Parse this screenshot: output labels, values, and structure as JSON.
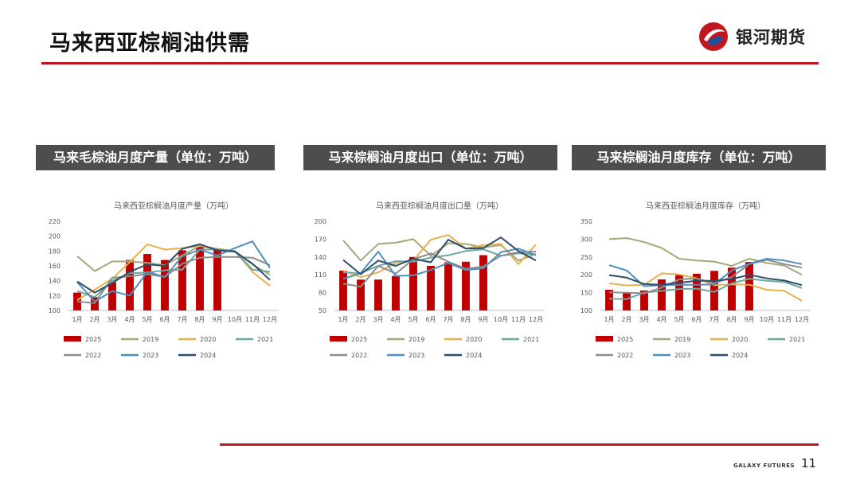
{
  "page": {
    "title": "马来西亚棕榈油供需",
    "page_number": "11",
    "footer_brand": "GALAXY FUTURES"
  },
  "logo": {
    "text": "银河期货",
    "icon": "galaxy-logo-icon",
    "colors": [
      "#c0161d",
      "#1f4e9c"
    ]
  },
  "colors": {
    "accent": "#c0161d",
    "header_bg": "#4d4d4d"
  },
  "panels": [
    {
      "header": "马来毛棕油月度产量（单位：万吨）"
    },
    {
      "header": "马来棕榈油月度出口（单位：万吨）"
    },
    {
      "header": "马来棕榈油月度库存（单位：万吨）"
    }
  ],
  "chart_data": [
    {
      "type": "bar+line",
      "title": "马来西亚棕榈油月度产量（万吨）",
      "categories": [
        "1月",
        "2月",
        "3月",
        "4月",
        "5月",
        "6月",
        "7月",
        "8月",
        "9月",
        "10月",
        "11月",
        "12月"
      ],
      "ylim": [
        100,
        220
      ],
      "yticks": [
        100,
        120,
        140,
        160,
        180,
        200,
        220
      ],
      "legend_position": "bottom",
      "series": [
        {
          "name": "2025",
          "kind": "bar",
          "color": "#c00000",
          "values": [
            124,
            118,
            138,
            168,
            176,
            168,
            181,
            187,
            183,
            null,
            null,
            null
          ]
        },
        {
          "name": "2019",
          "kind": "line",
          "color": "#a6a87a",
          "values": [
            173,
            153,
            166,
            166,
            164,
            161,
            174,
            187,
            183,
            180,
            162,
            148
          ]
        },
        {
          "name": "2020",
          "kind": "line",
          "color": "#e8b04f",
          "values": [
            114,
            128,
            143,
            165,
            189,
            182,
            184,
            187,
            182,
            180,
            152,
            133
          ]
        },
        {
          "name": "2021",
          "kind": "line",
          "color": "#6ea7a1",
          "values": [
            126,
            118,
            140,
            150,
            151,
            154,
            155,
            182,
            182,
            180,
            155,
            152
          ]
        },
        {
          "name": "2022",
          "kind": "line",
          "color": "#8c8c8c",
          "values": [
            112,
            110,
            144,
            146,
            149,
            145,
            163,
            171,
            172,
            172,
            171,
            161
          ]
        },
        {
          "name": "2023",
          "kind": "line",
          "color": "#4f8fc0",
          "values": [
            138,
            112,
            126,
            120,
            152,
            145,
            173,
            182,
            174,
            184,
            193,
            157
          ]
        },
        {
          "name": "2024",
          "kind": "line",
          "color": "#2e4d6a",
          "values": [
            139,
            124,
            137,
            152,
            162,
            160,
            183,
            189,
            181,
            179,
            163,
            141
          ]
        }
      ]
    },
    {
      "type": "bar+line",
      "title": "马来西亚棕榈油月度出口量（万吨）",
      "categories": [
        "1月",
        "2月",
        "3月",
        "4月",
        "5月",
        "6月",
        "7月",
        "8月",
        "9月",
        "10月",
        "11月",
        "12月"
      ],
      "ylim": [
        50,
        200
      ],
      "yticks": [
        50,
        80,
        110,
        140,
        170,
        200
      ],
      "legend_position": "bottom",
      "series": [
        {
          "name": "2025",
          "kind": "bar",
          "color": "#c00000",
          "values": [
            117,
            102,
            102,
            108,
            140,
            125,
            131,
            132,
            143,
            null,
            null,
            null
          ]
        },
        {
          "name": "2019",
          "kind": "line",
          "color": "#a6a87a",
          "values": [
            168,
            134,
            162,
            164,
            170,
            142,
            163,
            162,
            156,
            160,
            134,
            145
          ]
        },
        {
          "name": "2020",
          "kind": "line",
          "color": "#e8b04f",
          "values": [
            117,
            106,
            114,
            130,
            134,
            169,
            177,
            154,
            160,
            162,
            128,
            161
          ]
        },
        {
          "name": "2021",
          "kind": "line",
          "color": "#6ea7a1",
          "values": [
            114,
            113,
            125,
            133,
            132,
            139,
            143,
            150,
            153,
            142,
            146,
            144
          ]
        },
        {
          "name": "2022",
          "kind": "line",
          "color": "#8c8c8c",
          "values": [
            95,
            90,
            125,
            112,
            136,
            146,
            132,
            120,
            124,
            142,
            148,
            149
          ]
        },
        {
          "name": "2023",
          "kind": "line",
          "color": "#4f8fc0",
          "values": [
            103,
            113,
            149,
            108,
            109,
            118,
            130,
            118,
            121,
            148,
            154,
            143
          ]
        },
        {
          "name": "2024",
          "kind": "line",
          "color": "#2e4d6a",
          "values": [
            135,
            111,
            134,
            125,
            137,
            131,
            169,
            154,
            155,
            173,
            150,
            134
          ]
        }
      ]
    },
    {
      "type": "bar+line",
      "title": "马来西亚棕榈油月度库存（万吨）",
      "categories": [
        "1月",
        "2月",
        "3月",
        "4月",
        "5月",
        "6月",
        "7月",
        "8月",
        "9月",
        "10月",
        "11月",
        "12月"
      ],
      "ylim": [
        100,
        350
      ],
      "yticks": [
        100,
        150,
        200,
        250,
        300,
        350
      ],
      "legend_position": "bottom",
      "series": [
        {
          "name": "2025",
          "kind": "bar",
          "color": "#c00000",
          "values": [
            158,
            150,
            156,
            187,
            199,
            203,
            211,
            220,
            236,
            null,
            null,
            null
          ]
        },
        {
          "name": "2019",
          "kind": "line",
          "color": "#a6a87a",
          "values": [
            300,
            303,
            292,
            275,
            245,
            240,
            237,
            225,
            245,
            233,
            226,
            200
          ]
        },
        {
          "name": "2020",
          "kind": "line",
          "color": "#e8b04f",
          "values": [
            176,
            170,
            172,
            204,
            201,
            190,
            171,
            173,
            172,
            158,
            155,
            127
          ]
        },
        {
          "name": "2021",
          "kind": "line",
          "color": "#6ea7a1",
          "values": [
            133,
            132,
            150,
            155,
            160,
            161,
            152,
            176,
            189,
            183,
            180,
            163
          ]
        },
        {
          "name": "2022",
          "kind": "line",
          "color": "#8c8c8c",
          "values": [
            151,
            150,
            148,
            164,
            187,
            190,
            176,
            194,
            230,
            242,
            230,
            220
          ]
        },
        {
          "name": "2023",
          "kind": "line",
          "color": "#4f8fc0",
          "values": [
            227,
            212,
            168,
            171,
            172,
            172,
            173,
            212,
            231,
            245,
            240,
            230
          ]
        },
        {
          "name": "2024",
          "kind": "line",
          "color": "#2e4d6a",
          "values": [
            199,
            192,
            174,
            172,
            178,
            183,
            183,
            188,
            200,
            190,
            184,
            171
          ]
        }
      ]
    }
  ]
}
